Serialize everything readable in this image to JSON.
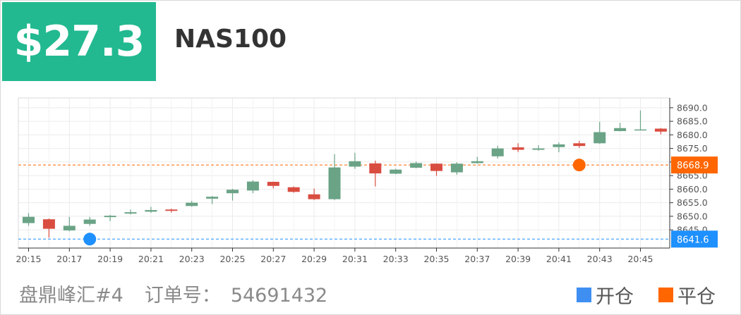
{
  "header": {
    "price": "$27.3",
    "symbol": "NAS100"
  },
  "footer": {
    "account": "盘鼎峰汇#4",
    "order_label": "订单号：",
    "order_number": "54691432",
    "legend_open": "开仓",
    "legend_close": "平仓"
  },
  "colors": {
    "up": "#6aa386",
    "down": "#d94d41",
    "open": "#1e90ff",
    "close": "#ff6600",
    "price_box": "#22b990"
  },
  "chart_data": {
    "type": "candlestick",
    "x_ticks": [
      "20:15",
      "20:17",
      "20:19",
      "20:21",
      "20:23",
      "20:25",
      "20:27",
      "20:29",
      "20:31",
      "20:33",
      "20:35",
      "20:37",
      "20:39",
      "20:41",
      "20:43",
      "20:45"
    ],
    "ylim": [
      8638.3,
      8693.6
    ],
    "y_ticks": [
      "8645.0",
      "8650.0",
      "8655.0",
      "8660.0",
      "8665.0",
      "8670.0",
      "8675.0",
      "8680.0",
      "8685.0",
      "8690.0"
    ],
    "grid": true,
    "candles": [
      {
        "t": "20:15",
        "o": 8647.5,
        "c": 8649.8,
        "h": 8651.2,
        "l": 8646.5
      },
      {
        "t": "20:16",
        "o": 8648.9,
        "c": 8645.4,
        "h": 8649.2,
        "l": 8642.1
      },
      {
        "t": "20:17",
        "o": 8644.8,
        "c": 8646.5,
        "h": 8649.8,
        "l": 8644.5
      },
      {
        "t": "20:18",
        "o": 8647.2,
        "c": 8648.8,
        "h": 8649.8,
        "l": 8646.5
      },
      {
        "t": "20:19",
        "o": 8649.7,
        "c": 8650.2,
        "h": 8650.5,
        "l": 8648.2
      },
      {
        "t": "20:20",
        "o": 8651.0,
        "c": 8651.5,
        "h": 8652.5,
        "l": 8650.7
      },
      {
        "t": "20:21",
        "o": 8651.7,
        "c": 8652.3,
        "h": 8653.5,
        "l": 8651.3
      },
      {
        "t": "20:22",
        "o": 8652.5,
        "c": 8652.0,
        "h": 8652.8,
        "l": 8651.4
      },
      {
        "t": "20:23",
        "o": 8653.8,
        "c": 8655.0,
        "h": 8655.7,
        "l": 8653.5
      },
      {
        "t": "20:24",
        "o": 8656.5,
        "c": 8657.2,
        "h": 8657.5,
        "l": 8654.5
      },
      {
        "t": "20:25",
        "o": 8658.5,
        "c": 8659.8,
        "h": 8660.1,
        "l": 8655.8
      },
      {
        "t": "20:26",
        "o": 8659.5,
        "c": 8662.8,
        "h": 8663.3,
        "l": 8658.5
      },
      {
        "t": "20:27",
        "o": 8662.7,
        "c": 8661.2,
        "h": 8662.8,
        "l": 8660.3
      },
      {
        "t": "20:28",
        "o": 8660.7,
        "c": 8659.0,
        "h": 8661.0,
        "l": 8658.7
      },
      {
        "t": "20:29",
        "o": 8658.1,
        "c": 8656.3,
        "h": 8660.2,
        "l": 8656.0
      },
      {
        "t": "20:30",
        "o": 8656.3,
        "c": 8668.0,
        "h": 8672.9,
        "l": 8656.0
      },
      {
        "t": "20:31",
        "o": 8668.3,
        "c": 8670.3,
        "h": 8673.4,
        "l": 8667.5
      },
      {
        "t": "20:32",
        "o": 8669.5,
        "c": 8665.8,
        "h": 8670.5,
        "l": 8661.0
      },
      {
        "t": "20:33",
        "o": 8665.7,
        "c": 8667.2,
        "h": 8667.5,
        "l": 8665.5
      },
      {
        "t": "20:34",
        "o": 8667.9,
        "c": 8669.6,
        "h": 8670.2,
        "l": 8667.7
      },
      {
        "t": "20:35",
        "o": 8669.4,
        "c": 8666.7,
        "h": 8669.5,
        "l": 8664.9
      },
      {
        "t": "20:36",
        "o": 8666.2,
        "c": 8669.4,
        "h": 8669.9,
        "l": 8665.3
      },
      {
        "t": "20:37",
        "o": 8669.6,
        "c": 8670.3,
        "h": 8671.9,
        "l": 8669.4
      },
      {
        "t": "20:38",
        "o": 8672.1,
        "c": 8675.0,
        "h": 8676.0,
        "l": 8671.3
      },
      {
        "t": "20:39",
        "o": 8675.4,
        "c": 8674.5,
        "h": 8676.9,
        "l": 8673.7
      },
      {
        "t": "20:40",
        "o": 8674.5,
        "c": 8675.0,
        "h": 8676.2,
        "l": 8674.2
      },
      {
        "t": "20:41",
        "o": 8675.5,
        "c": 8676.5,
        "h": 8677.2,
        "l": 8673.6
      },
      {
        "t": "20:42",
        "o": 8676.9,
        "c": 8675.9,
        "h": 8677.8,
        "l": 8675.2
      },
      {
        "t": "20:43",
        "o": 8676.9,
        "c": 8681.0,
        "h": 8684.8,
        "l": 8676.7
      },
      {
        "t": "20:44",
        "o": 8681.4,
        "c": 8682.5,
        "h": 8684.4,
        "l": 8681.3
      },
      {
        "t": "20:45",
        "o": 8681.9,
        "c": 8682.0,
        "h": 8689.0,
        "l": 8681.7
      },
      {
        "t": "20:46",
        "o": 8682.3,
        "c": 8681.2,
        "h": 8682.5,
        "l": 8680.2
      }
    ],
    "open_price": 8641.6,
    "close_price": 8668.9,
    "open_marker": {
      "t": "20:18",
      "value": 8641.6
    },
    "close_marker": {
      "t": "20:42",
      "value": 8668.9
    }
  }
}
